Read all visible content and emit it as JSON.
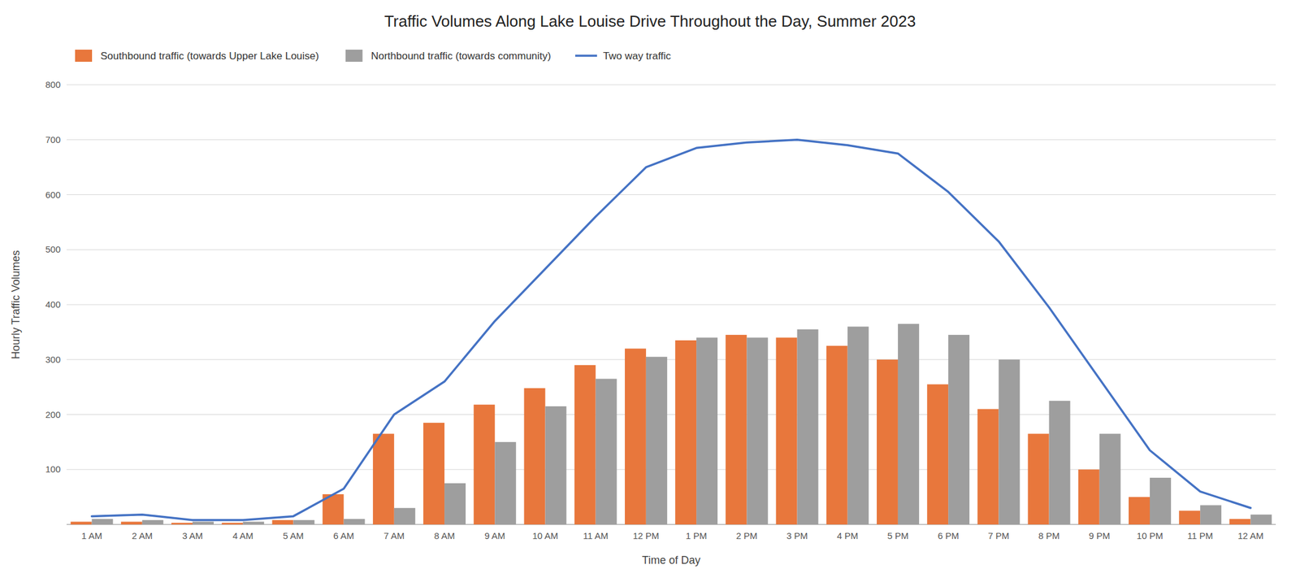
{
  "chart_data": {
    "type": "bar",
    "title": "Traffic Volumes Along Lake Louise Drive Throughout the Day, Summer 2023",
    "x_label": "Time of Day",
    "y_label": "Hourly Traffic Volumes",
    "categories": [
      "1 AM",
      "2 AM",
      "3 AM",
      "4 AM",
      "5 AM",
      "6 AM",
      "7 AM",
      "8 AM",
      "9 AM",
      "10 AM",
      "11 AM",
      "12 PM",
      "1 PM",
      "2 PM",
      "3 PM",
      "4 PM",
      "5 PM",
      "6 PM",
      "7 PM",
      "8 PM",
      "9 PM",
      "10 PM",
      "11 PM",
      "12 AM"
    ],
    "series": [
      {
        "name": "Southbound traffic (towards Upper Lake Louise)",
        "type": "bar",
        "color": "#E8773C",
        "values": [
          5,
          5,
          3,
          3,
          8,
          55,
          165,
          185,
          218,
          248,
          290,
          320,
          335,
          345,
          340,
          325,
          300,
          255,
          210,
          165,
          100,
          50,
          25,
          10
        ]
      },
      {
        "name": "Northbound traffic (towards community)",
        "type": "bar",
        "color": "#9E9E9E",
        "values": [
          10,
          8,
          5,
          5,
          8,
          10,
          30,
          75,
          150,
          215,
          265,
          305,
          340,
          340,
          355,
          360,
          365,
          345,
          300,
          225,
          165,
          85,
          35,
          18
        ]
      },
      {
        "name": "Two way traffic",
        "type": "line",
        "color": "#4472C4",
        "values": [
          15,
          18,
          8,
          8,
          15,
          65,
          200,
          260,
          370,
          465,
          560,
          650,
          685,
          695,
          700,
          690,
          675,
          605,
          515,
          395,
          265,
          135,
          60,
          30
        ]
      }
    ],
    "ylim": [
      0,
      800
    ],
    "yticks": [
      100,
      200,
      300,
      400,
      500,
      600,
      700,
      800
    ],
    "grid": true,
    "legend": "upper left"
  }
}
